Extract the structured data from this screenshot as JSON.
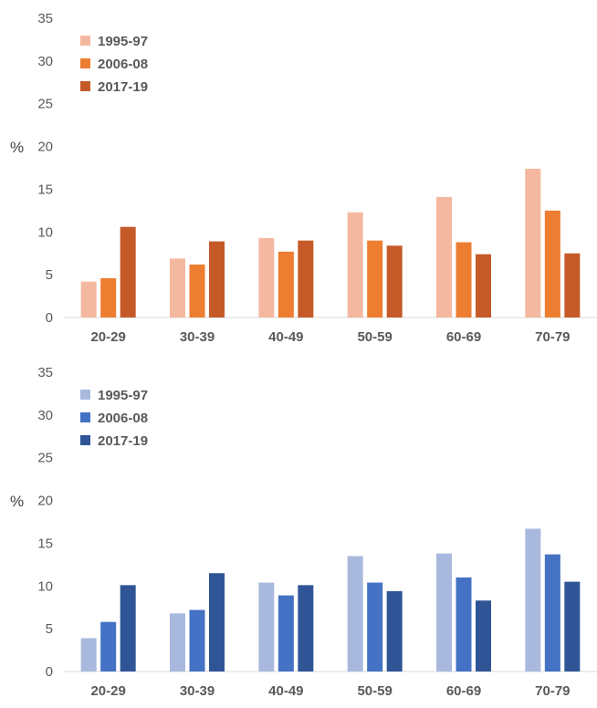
{
  "chart_data": [
    {
      "type": "bar",
      "ylabel": "%",
      "xlabel": "",
      "ylim": [
        0,
        35
      ],
      "yticks": [
        0,
        5,
        10,
        15,
        20,
        25,
        30,
        35
      ],
      "grid": false,
      "legend_position": "top-left",
      "categories": [
        "20-29",
        "30-39",
        "40-49",
        "50-59",
        "60-69",
        "70-79"
      ],
      "series": [
        {
          "name": "1995-97",
          "color": "#F4B8A0",
          "values": [
            4.2,
            6.9,
            9.3,
            12.3,
            14.1,
            17.4
          ]
        },
        {
          "name": "2006-08",
          "color": "#ED7D31",
          "values": [
            4.6,
            6.2,
            7.7,
            9.0,
            8.8,
            12.5
          ]
        },
        {
          "name": "2017-19",
          "color": "#C55A28",
          "values": [
            10.6,
            8.9,
            9.0,
            8.4,
            7.4,
            7.5
          ]
        }
      ]
    },
    {
      "type": "bar",
      "ylabel": "%",
      "xlabel": "",
      "ylim": [
        0,
        35
      ],
      "yticks": [
        0,
        5,
        10,
        15,
        20,
        25,
        30,
        35
      ],
      "grid": false,
      "legend_position": "top-left",
      "categories": [
        "20-29",
        "30-39",
        "40-49",
        "50-59",
        "60-69",
        "70-79"
      ],
      "series": [
        {
          "name": "1995-97",
          "color": "#A9B9DE",
          "values": [
            3.9,
            6.8,
            10.4,
            13.5,
            13.8,
            16.7
          ]
        },
        {
          "name": "2006-08",
          "color": "#4472C4",
          "values": [
            5.8,
            7.2,
            8.9,
            10.4,
            11.0,
            13.7
          ]
        },
        {
          "name": "2017-19",
          "color": "#2F5597",
          "values": [
            10.1,
            11.5,
            10.1,
            9.4,
            8.3,
            10.5
          ]
        }
      ]
    }
  ]
}
